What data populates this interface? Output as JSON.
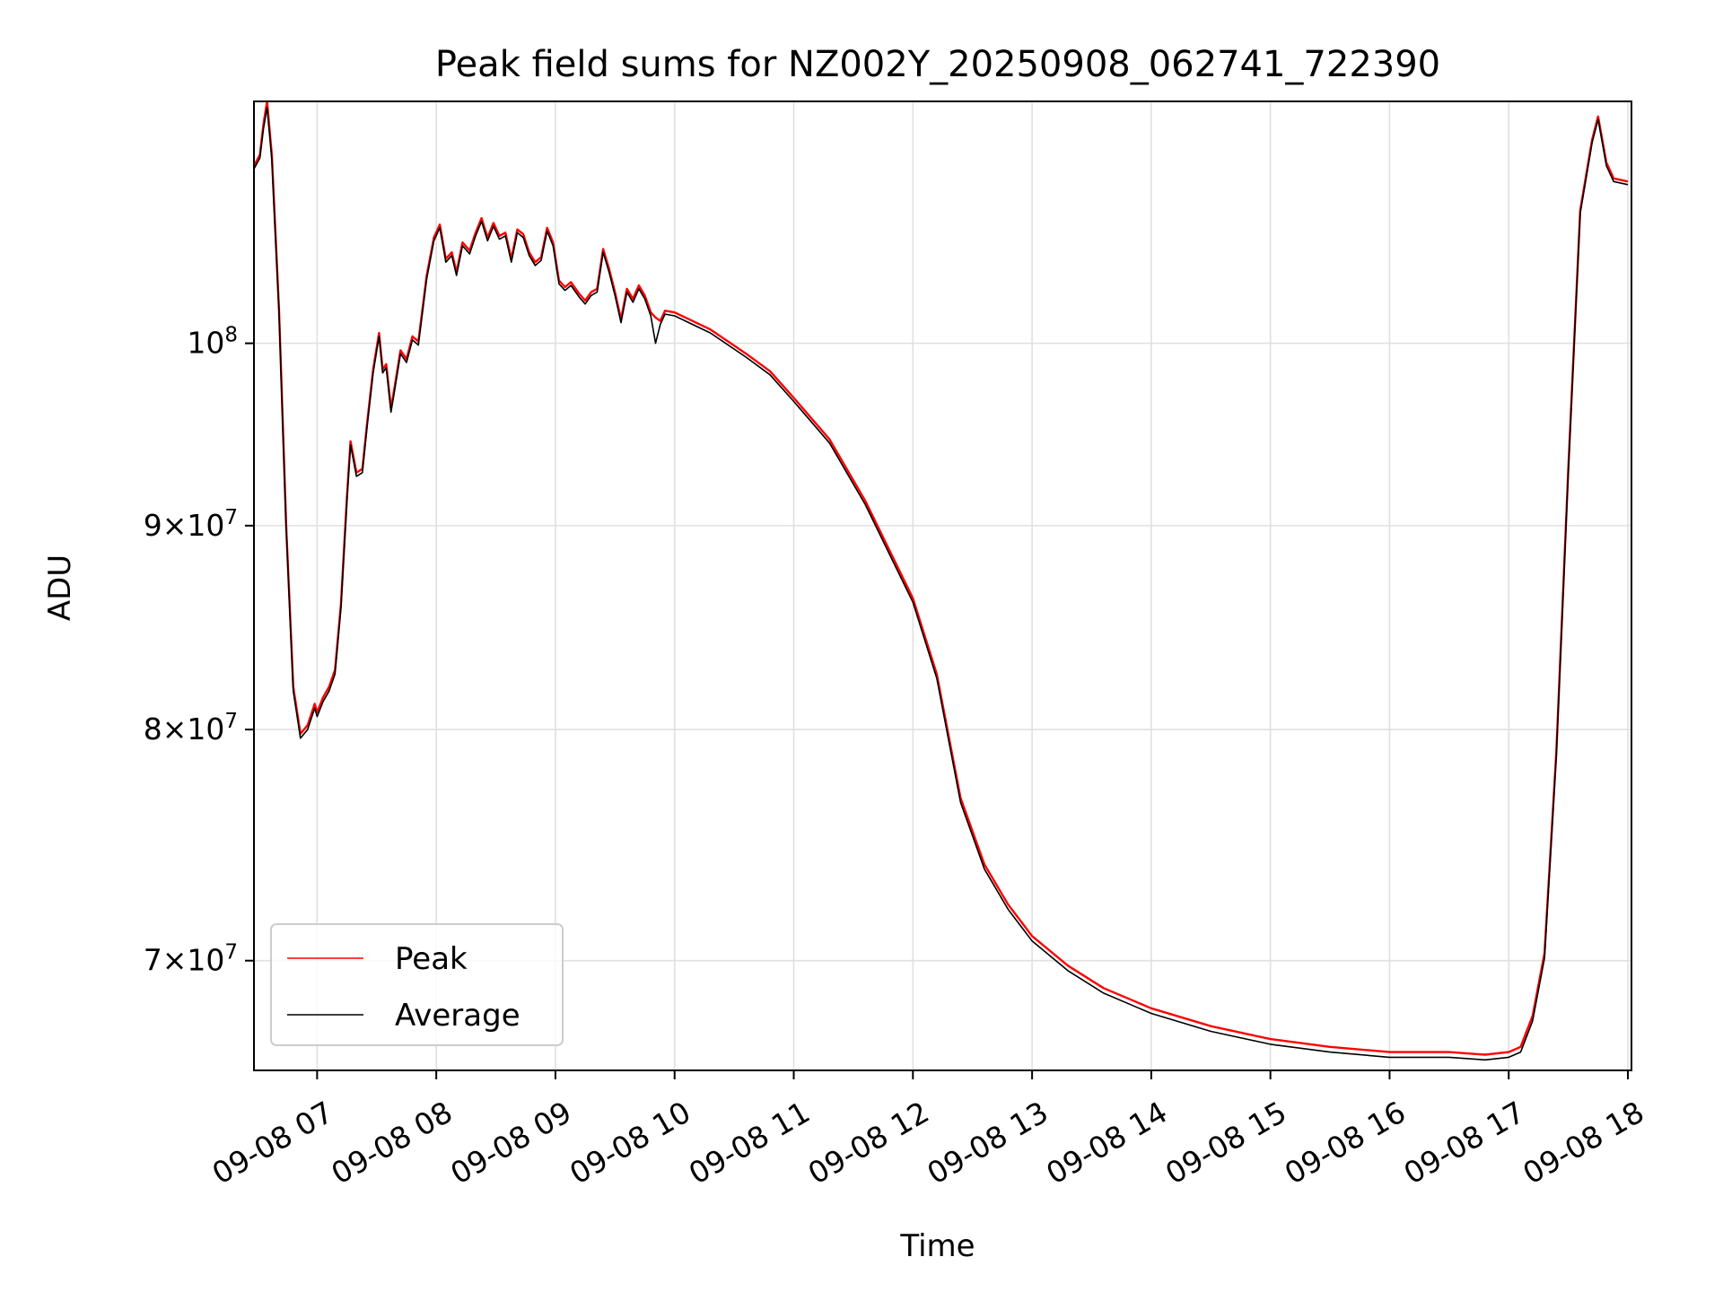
{
  "chart_data": {
    "type": "line",
    "title": "Peak field sums for NZ002Y_20250908_062741_722390",
    "xlabel": "Time",
    "ylabel": "ADU",
    "y_scale": "log",
    "x_range_hours": [
      6.47,
      18.03
    ],
    "ylim": [
      65700000,
      115000000
    ],
    "x_ticks": [
      {
        "hour": 7,
        "label": "09-08 07"
      },
      {
        "hour": 8,
        "label": "09-08 08"
      },
      {
        "hour": 9,
        "label": "09-08 09"
      },
      {
        "hour": 10,
        "label": "09-08 10"
      },
      {
        "hour": 11,
        "label": "09-08 11"
      },
      {
        "hour": 12,
        "label": "09-08 12"
      },
      {
        "hour": 13,
        "label": "09-08 13"
      },
      {
        "hour": 14,
        "label": "09-08 14"
      },
      {
        "hour": 15,
        "label": "09-08 15"
      },
      {
        "hour": 16,
        "label": "09-08 16"
      },
      {
        "hour": 17,
        "label": "09-08 17"
      },
      {
        "hour": 18,
        "label": "09-08 18"
      }
    ],
    "y_ticks": [
      {
        "value": 70000000,
        "mant": "7",
        "exp": "7"
      },
      {
        "value": 80000000,
        "mant": "8",
        "exp": "7"
      },
      {
        "value": 90000000,
        "mant": "9",
        "exp": "7"
      },
      {
        "value": 100000000,
        "mant": "",
        "exp": "8"
      }
    ],
    "grid": true,
    "legend_position": "lower-left",
    "series": [
      {
        "name": "Peak",
        "color": "#ff0000",
        "x": [
          6.47,
          6.52,
          6.55,
          6.58,
          6.62,
          6.68,
          6.74,
          6.8,
          6.86,
          6.92,
          6.98,
          7.0,
          7.05,
          7.1,
          7.15,
          7.2,
          7.25,
          7.28,
          7.33,
          7.38,
          7.42,
          7.47,
          7.52,
          7.55,
          7.58,
          7.62,
          7.65,
          7.7,
          7.75,
          7.8,
          7.85,
          7.92,
          7.98,
          8.03,
          8.08,
          8.13,
          8.17,
          8.22,
          8.28,
          8.33,
          8.38,
          8.43,
          8.48,
          8.53,
          8.58,
          8.63,
          8.68,
          8.73,
          8.78,
          8.83,
          8.88,
          8.93,
          8.98,
          9.03,
          9.08,
          9.13,
          9.2,
          9.25,
          9.3,
          9.35,
          9.4,
          9.45,
          9.5,
          9.55,
          9.6,
          9.65,
          9.7,
          9.75,
          9.8,
          9.84,
          9.88,
          9.92,
          10.0,
          10.3,
          10.6,
          10.8,
          11.0,
          11.3,
          11.6,
          12.0,
          12.2,
          12.4,
          12.6,
          12.8,
          13.0,
          13.3,
          13.6,
          14.0,
          14.5,
          15.0,
          15.5,
          16.0,
          16.5,
          16.8,
          17.0,
          17.1,
          17.2,
          17.3,
          17.4,
          17.5,
          17.6,
          17.7,
          17.75,
          17.82,
          17.88,
          18.0
        ],
        "values": [
          110800000,
          111500000,
          113500000,
          115000000,
          111500000,
          102000000,
          90000000,
          82000000,
          79800000,
          80200000,
          81200000,
          80800000,
          81500000,
          82000000,
          82800000,
          86000000,
          91500000,
          94500000,
          92800000,
          93000000,
          95500000,
          98500000,
          100600000,
          98500000,
          98800000,
          96300000,
          97500000,
          99600000,
          99100000,
          100400000,
          100100000,
          104000000,
          106300000,
          107100000,
          105000000,
          105400000,
          104200000,
          106000000,
          105500000,
          106600000,
          107500000,
          106300000,
          107200000,
          106400000,
          106600000,
          105000000,
          106800000,
          106500000,
          105400000,
          104800000,
          105100000,
          106900000,
          106000000,
          103700000,
          103300000,
          103600000,
          102900000,
          102500000,
          103000000,
          103200000,
          105600000,
          104400000,
          103000000,
          101400000,
          103200000,
          102600000,
          103400000,
          102800000,
          101800000,
          101500000,
          101300000,
          101900000,
          101800000,
          100800000,
          99400000,
          98400000,
          96900000,
          94600000,
          91300000,
          86300000,
          82600000,
          76900000,
          74000000,
          72300000,
          71000000,
          69800000,
          68900000,
          68100000,
          67400000,
          66900000,
          66600000,
          66400000,
          66400000,
          66300000,
          66400000,
          66600000,
          67800000,
          70300000,
          79000000,
          93000000,
          108000000,
          112500000,
          114000000,
          111000000,
          110000000,
          109800000
        ]
      },
      {
        "name": "Average",
        "color": "#000000",
        "x": [
          6.47,
          6.52,
          6.55,
          6.58,
          6.62,
          6.68,
          6.74,
          6.8,
          6.86,
          6.92,
          6.98,
          7.0,
          7.05,
          7.1,
          7.15,
          7.2,
          7.25,
          7.28,
          7.33,
          7.38,
          7.42,
          7.47,
          7.52,
          7.55,
          7.58,
          7.62,
          7.65,
          7.7,
          7.75,
          7.8,
          7.85,
          7.92,
          7.98,
          8.03,
          8.08,
          8.13,
          8.17,
          8.22,
          8.28,
          8.33,
          8.38,
          8.43,
          8.48,
          8.53,
          8.58,
          8.63,
          8.68,
          8.73,
          8.78,
          8.83,
          8.88,
          8.93,
          8.98,
          9.03,
          9.08,
          9.13,
          9.2,
          9.25,
          9.3,
          9.35,
          9.4,
          9.45,
          9.5,
          9.55,
          9.6,
          9.65,
          9.7,
          9.75,
          9.8,
          9.84,
          9.88,
          9.92,
          10.0,
          10.3,
          10.6,
          10.8,
          11.0,
          11.3,
          11.6,
          12.0,
          12.2,
          12.4,
          12.6,
          12.8,
          13.0,
          13.3,
          13.6,
          14.0,
          14.5,
          15.0,
          15.5,
          16.0,
          16.5,
          16.8,
          17.0,
          17.1,
          17.2,
          17.3,
          17.4,
          17.5,
          17.6,
          17.7,
          17.75,
          17.82,
          17.88,
          18.0
        ],
        "values": [
          110600000,
          111300000,
          113200000,
          114600000,
          111200000,
          101800000,
          89800000,
          81800000,
          79600000,
          80000000,
          81000000,
          80600000,
          81300000,
          81800000,
          82600000,
          85800000,
          91300000,
          94300000,
          92600000,
          92800000,
          95300000,
          98300000,
          100400000,
          98300000,
          98600000,
          96100000,
          97300000,
          99400000,
          98900000,
          100200000,
          99900000,
          103800000,
          106100000,
          106900000,
          104800000,
          105200000,
          104000000,
          105800000,
          105300000,
          106400000,
          107300000,
          106100000,
          107000000,
          106200000,
          106400000,
          104800000,
          106600000,
          106300000,
          105200000,
          104600000,
          104900000,
          106700000,
          105800000,
          103500000,
          103100000,
          103400000,
          102700000,
          102300000,
          102800000,
          103000000,
          105400000,
          104200000,
          102800000,
          101200000,
          103000000,
          102400000,
          103200000,
          102600000,
          101600000,
          100000000,
          101100000,
          101700000,
          101600000,
          100600000,
          99200000,
          98200000,
          96700000,
          94400000,
          91100000,
          86100000,
          82400000,
          76700000,
          73800000,
          72100000,
          70800000,
          69600000,
          68700000,
          67900000,
          67200000,
          66700000,
          66400000,
          66200000,
          66200000,
          66100000,
          66200000,
          66400000,
          67600000,
          70100000,
          78800000,
          92800000,
          107800000,
          112300000,
          113800000,
          110800000,
          109800000,
          109600000
        ]
      }
    ]
  }
}
